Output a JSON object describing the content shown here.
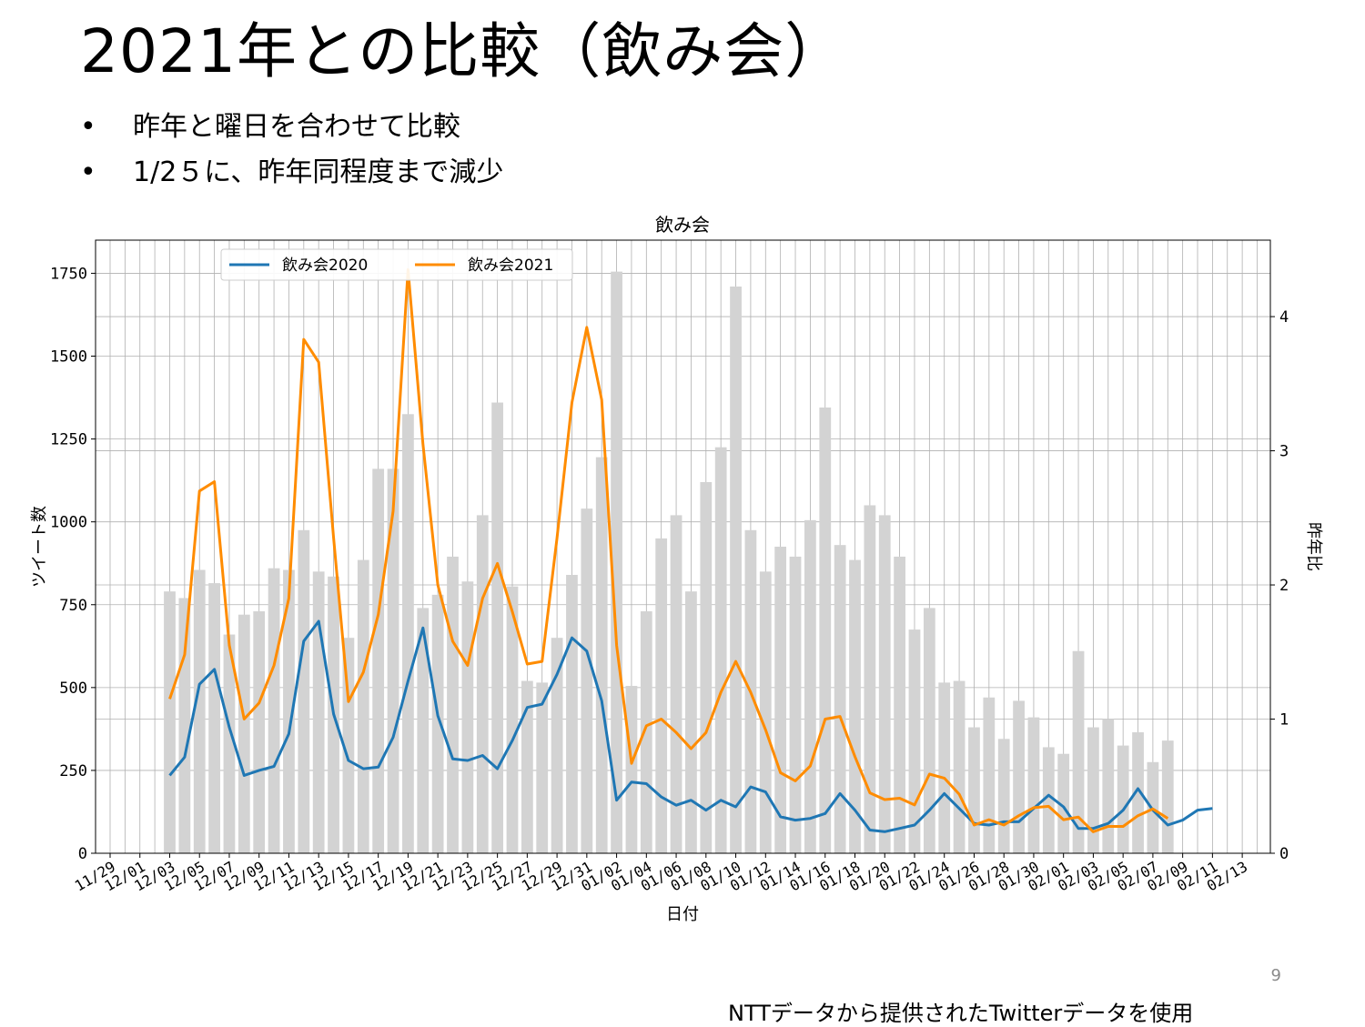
{
  "slide": {
    "title": "2021年との比較（飲み会）",
    "bullets": [
      "昨年と曜日を合わせて比較",
      "1/2５に、昨年同程度まで減少"
    ],
    "bullet_marker": "•",
    "page_number": "9",
    "credit": "NTTデータから提供されたTwitterデータを使用"
  },
  "colors": {
    "series_2020": "#1f77b4",
    "series_2021": "#ff8c00",
    "bars": "#d3d3d3",
    "grid": "#b0b0b0"
  },
  "chart_data": {
    "type": "bar+line",
    "title": "飲み会",
    "xlabel": "日付",
    "ylabel_left": "ツイート数",
    "ylabel_right": "昨年比",
    "ylim_left": [
      0,
      1850
    ],
    "ylim_right": [
      0,
      4.57
    ],
    "yticks_left": [
      0,
      250,
      500,
      750,
      1000,
      1250,
      1500,
      1750
    ],
    "yticks_right": [
      0,
      1,
      2,
      3,
      4
    ],
    "grid": true,
    "legend_position": "top-left",
    "x_dates": [
      "11/29",
      "11/30",
      "12/01",
      "12/02",
      "12/03",
      "12/04",
      "12/05",
      "12/06",
      "12/07",
      "12/08",
      "12/09",
      "12/10",
      "12/11",
      "12/12",
      "12/13",
      "12/14",
      "12/15",
      "12/16",
      "12/17",
      "12/18",
      "12/19",
      "12/20",
      "12/21",
      "12/22",
      "12/23",
      "12/24",
      "12/25",
      "12/26",
      "12/27",
      "12/28",
      "12/29",
      "12/30",
      "12/31",
      "01/01",
      "01/02",
      "01/03",
      "01/04",
      "01/05",
      "01/06",
      "01/07",
      "01/08",
      "01/09",
      "01/10",
      "01/11",
      "01/12",
      "01/13",
      "01/14",
      "01/15",
      "01/16",
      "01/17",
      "01/18",
      "01/19",
      "01/20",
      "01/21",
      "01/22",
      "01/23",
      "01/24",
      "01/25",
      "01/26",
      "01/27",
      "01/28",
      "01/29",
      "01/30",
      "01/31",
      "02/01",
      "02/02",
      "02/03",
      "02/04",
      "02/05",
      "02/06",
      "02/07",
      "02/08",
      "02/09",
      "02/10",
      "02/11",
      "02/12",
      "02/13",
      "02/14"
    ],
    "x_tick_labels": [
      "11/29",
      "12/01",
      "12/03",
      "12/05",
      "12/07",
      "12/09",
      "12/11",
      "12/13",
      "12/15",
      "12/17",
      "12/19",
      "12/21",
      "12/23",
      "12/25",
      "12/27",
      "12/29",
      "12/31",
      "01/02",
      "01/04",
      "01/06",
      "01/08",
      "01/10",
      "01/12",
      "01/14",
      "01/16",
      "01/18",
      "01/20",
      "01/22",
      "01/24",
      "01/26",
      "01/28",
      "01/30",
      "02/01",
      "02/03",
      "02/05",
      "02/07",
      "02/09",
      "02/11",
      "02/13"
    ],
    "bars": {
      "start_index": 4,
      "values": [
        790,
        770,
        855,
        815,
        660,
        720,
        730,
        860,
        855,
        975,
        850,
        835,
        650,
        885,
        1160,
        1160,
        1325,
        740,
        780,
        895,
        820,
        1020,
        1360,
        805,
        520,
        515,
        650,
        840,
        1040,
        1195,
        1755,
        505,
        730,
        950,
        1020,
        790,
        1120,
        1225,
        1710,
        975,
        850,
        925,
        895,
        1005,
        1345,
        930,
        885,
        1050,
        1020,
        895,
        675,
        740,
        515,
        520,
        380,
        470,
        345,
        460,
        410,
        320,
        300,
        610,
        380,
        405,
        325,
        365,
        275,
        340
      ]
    },
    "series": [
      {
        "name": "飲み会2020",
        "axis": "left",
        "start_index": 4,
        "values": [
          235,
          290,
          510,
          555,
          380,
          235,
          250,
          262,
          360,
          640,
          700,
          420,
          280,
          255,
          260,
          350,
          520,
          680,
          415,
          285,
          280,
          295,
          255,
          340,
          440,
          450,
          540,
          650,
          610,
          460,
          160,
          215,
          210,
          170,
          145,
          160,
          130,
          160,
          140,
          200,
          185,
          110,
          100,
          105,
          120,
          180,
          130,
          70,
          65,
          75,
          85,
          130,
          180,
          135,
          90,
          85,
          95,
          95,
          135,
          175,
          140,
          75,
          75,
          90,
          130,
          195,
          130,
          85,
          100,
          130,
          135
        ]
      },
      {
        "name": "飲み会2021",
        "axis": "right",
        "start_index": 4,
        "values": [
          1.15,
          1.48,
          2.7,
          2.77,
          1.55,
          1.0,
          1.12,
          1.4,
          1.9,
          3.83,
          3.66,
          2.35,
          1.13,
          1.35,
          1.78,
          2.55,
          4.35,
          3.05,
          2.0,
          1.58,
          1.4,
          1.9,
          2.16,
          1.8,
          1.41,
          1.43,
          2.35,
          3.36,
          3.92,
          3.38,
          1.55,
          0.67,
          0.95,
          1.0,
          0.9,
          0.78,
          0.9,
          1.2,
          1.43,
          1.2,
          0.92,
          0.6,
          0.54,
          0.65,
          1.0,
          1.02,
          0.72,
          0.45,
          0.4,
          0.41,
          0.36,
          0.59,
          0.56,
          0.44,
          0.21,
          0.25,
          0.21,
          0.28,
          0.34,
          0.35,
          0.25,
          0.27,
          0.16,
          0.2,
          0.2,
          0.28,
          0.33,
          0.26
        ]
      }
    ]
  }
}
